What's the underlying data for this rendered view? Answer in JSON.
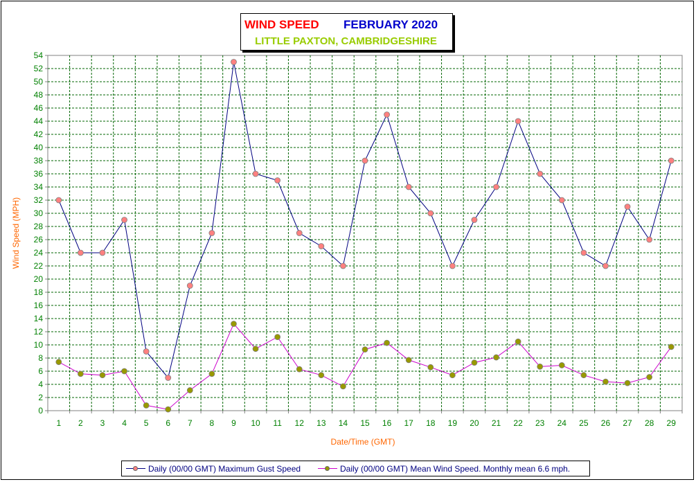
{
  "title": {
    "part1": "WIND SPEED",
    "part2": "FEBRUARY 2020",
    "subtitle": "LITTLE PAXTON, CAMBRIDGESHIRE"
  },
  "colors": {
    "title_red": "#ff0000",
    "title_blue": "#0000cc",
    "subtitle_green": "#99cc00",
    "axis_label_orange": "#ff6600",
    "tick_green": "#008000",
    "grid": "#006400",
    "gust_line": "#000080",
    "gust_marker": "#ff8080",
    "mean_line": "#cc00cc",
    "mean_marker": "#999900"
  },
  "chart_data": {
    "type": "line",
    "title": "WIND SPEED FEBRUARY 2020",
    "subtitle": "LITTLE PAXTON, CAMBRIDGESHIRE",
    "xlabel": "Date/Time (GMT)",
    "ylabel": "Wind Speed (MPH)",
    "ylim": [
      0,
      54
    ],
    "ytick_step": 2,
    "grid": true,
    "legend_position": "bottom",
    "x": [
      1,
      2,
      3,
      4,
      5,
      6,
      7,
      8,
      9,
      10,
      11,
      12,
      13,
      14,
      15,
      16,
      17,
      18,
      19,
      20,
      21,
      22,
      23,
      24,
      25,
      26,
      27,
      28,
      29
    ],
    "series": [
      {
        "name": "Daily (00/00 GMT) Maximum Gust Speed",
        "values": [
          32,
          24,
          24,
          29,
          9,
          5,
          19,
          27,
          53,
          36,
          35,
          27,
          25,
          22,
          38,
          45,
          34,
          30,
          22,
          29,
          34,
          44,
          36,
          32,
          24,
          22,
          31,
          26,
          38
        ]
      },
      {
        "name": "Daily (00/00 GMT) Mean Wind Speed. Monthly mean 6.6 mph.",
        "values": [
          7.4,
          5.6,
          5.4,
          6.0,
          0.8,
          0.2,
          3.1,
          5.6,
          13.2,
          9.4,
          11.2,
          6.3,
          5.4,
          3.7,
          9.3,
          10.3,
          7.7,
          6.6,
          5.4,
          7.3,
          8.1,
          10.5,
          6.7,
          6.9,
          5.4,
          4.4,
          4.2,
          5.1,
          9.7
        ]
      }
    ]
  }
}
